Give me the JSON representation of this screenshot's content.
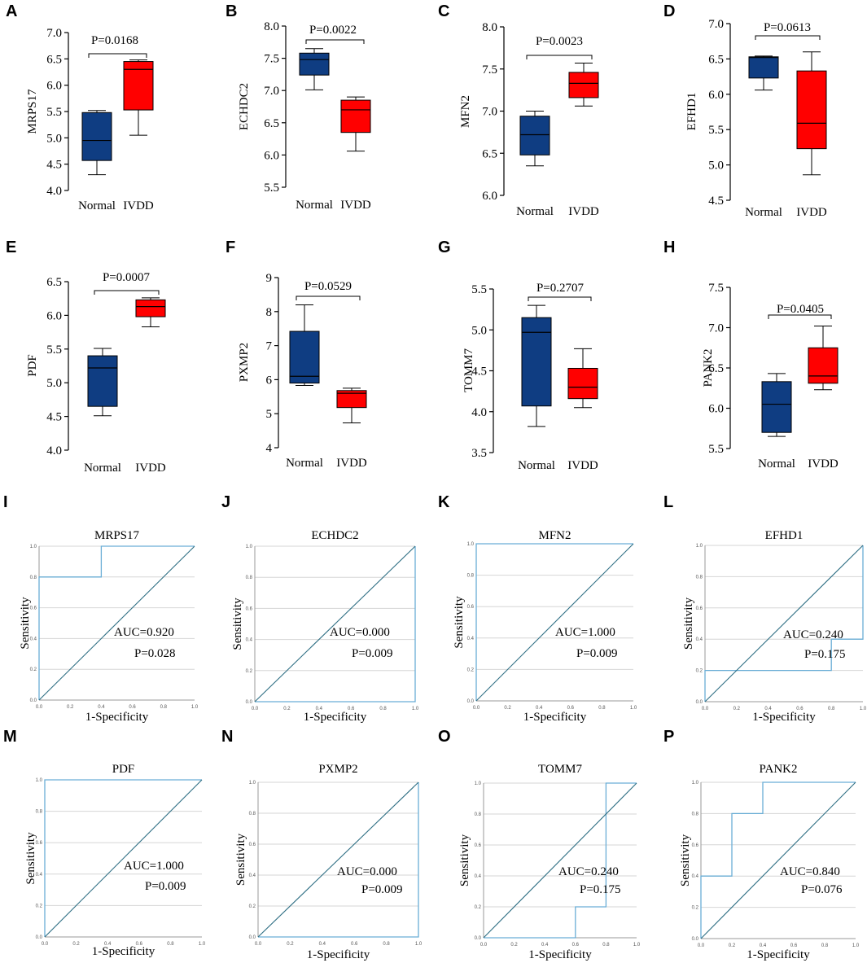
{
  "figure": {
    "chart_data": [
      {
        "panel": "A",
        "type": "box",
        "title": "",
        "ylabel": "MRPS17",
        "ylim": [
          4.0,
          7.0
        ],
        "yticks": [
          "4.0",
          "4.5",
          "5.0",
          "5.5",
          "6.0",
          "6.5",
          "7.0"
        ],
        "categories": [
          "Normal",
          "IVDD"
        ],
        "annotation": "P=0.0168",
        "series": [
          {
            "name": "Normal",
            "min": 4.3,
            "q1": 4.57,
            "median": 4.95,
            "q3": 5.48,
            "max": 5.52
          },
          {
            "name": "IVDD",
            "min": 5.05,
            "q1": 5.53,
            "median": 6.3,
            "q3": 6.45,
            "max": 6.48
          }
        ]
      },
      {
        "panel": "B",
        "type": "box",
        "title": "",
        "ylabel": "ECHDC2",
        "ylim": [
          5.5,
          8.0
        ],
        "yticks": [
          "5.5",
          "6.0",
          "6.5",
          "7.0",
          "7.5",
          "8.0"
        ],
        "categories": [
          "Normal",
          "IVDD"
        ],
        "annotation": "P=0.0022",
        "series": [
          {
            "name": "Normal",
            "min": 7.01,
            "q1": 7.24,
            "median": 7.48,
            "q3": 7.58,
            "max": 7.65
          },
          {
            "name": "IVDD",
            "min": 6.06,
            "q1": 6.35,
            "median": 6.7,
            "q3": 6.85,
            "max": 6.9
          }
        ]
      },
      {
        "panel": "C",
        "type": "box",
        "title": "",
        "ylabel": "MFN2",
        "ylim": [
          6.0,
          8.0
        ],
        "yticks": [
          "6.0",
          "6.5",
          "7.0",
          "7.5",
          "8.0"
        ],
        "categories": [
          "Normal",
          "IVDD"
        ],
        "annotation": "P=0.0023",
        "series": [
          {
            "name": "Normal",
            "min": 6.35,
            "q1": 6.48,
            "median": 6.72,
            "q3": 6.94,
            "max": 7.0
          },
          {
            "name": "IVDD",
            "min": 7.06,
            "q1": 7.16,
            "median": 7.33,
            "q3": 7.46,
            "max": 7.57
          }
        ]
      },
      {
        "panel": "D",
        "type": "box",
        "title": "",
        "ylabel": "EFHD1",
        "ylim": [
          4.5,
          7.0
        ],
        "yticks": [
          "4.5",
          "5.0",
          "5.5",
          "6.0",
          "6.5",
          "7.0"
        ],
        "categories": [
          "Normal",
          "IVDD"
        ],
        "annotation": "P=0.0613",
        "series": [
          {
            "name": "Normal",
            "min": 6.06,
            "q1": 6.23,
            "median": 6.52,
            "q3": 6.53,
            "max": 6.54
          },
          {
            "name": "IVDD",
            "min": 4.86,
            "q1": 5.23,
            "median": 5.59,
            "q3": 6.33,
            "max": 6.6
          }
        ]
      },
      {
        "panel": "E",
        "type": "box",
        "title": "",
        "ylabel": "PDF",
        "ylim": [
          4.0,
          6.5
        ],
        "yticks": [
          "4.0",
          "4.5",
          "5.0",
          "5.5",
          "6.0",
          "6.5"
        ],
        "categories": [
          "Normal",
          "IVDD"
        ],
        "annotation": "P=0.0007",
        "series": [
          {
            "name": "Normal",
            "min": 4.51,
            "q1": 4.65,
            "median": 5.22,
            "q3": 5.4,
            "max": 5.51
          },
          {
            "name": "IVDD",
            "min": 5.83,
            "q1": 5.98,
            "median": 6.13,
            "q3": 6.23,
            "max": 6.26
          }
        ]
      },
      {
        "panel": "F",
        "type": "box",
        "title": "",
        "ylabel": "PXMP2",
        "ylim": [
          4,
          9
        ],
        "yticks": [
          "4",
          "5",
          "6",
          "7",
          "8",
          "9"
        ],
        "categories": [
          "Normal",
          "IVDD"
        ],
        "annotation": "P=0.0529",
        "series": [
          {
            "name": "Normal",
            "min": 5.83,
            "q1": 5.9,
            "median": 6.1,
            "q3": 7.42,
            "max": 8.2
          },
          {
            "name": "IVDD",
            "min": 4.73,
            "q1": 5.18,
            "median": 5.6,
            "q3": 5.68,
            "max": 5.75
          }
        ]
      },
      {
        "panel": "G",
        "type": "box",
        "title": "",
        "ylabel": "TOMM7",
        "ylim": [
          3.5,
          5.5
        ],
        "yticks": [
          "3.5",
          "4.0",
          "4.5",
          "5.0",
          "5.5"
        ],
        "categories": [
          "Normal",
          "IVDD"
        ],
        "annotation": "P=0.2707",
        "series": [
          {
            "name": "Normal",
            "min": 3.82,
            "q1": 4.07,
            "median": 4.97,
            "q3": 5.15,
            "max": 5.3
          },
          {
            "name": "IVDD",
            "min": 4.05,
            "q1": 4.16,
            "median": 4.3,
            "q3": 4.53,
            "max": 4.77
          }
        ]
      },
      {
        "panel": "H",
        "type": "box",
        "title": "",
        "ylabel": "PANK2",
        "ylim": [
          5.5,
          7.5
        ],
        "yticks": [
          "5.5",
          "6.0",
          "6.5",
          "7.0",
          "7.5"
        ],
        "categories": [
          "Normal",
          "IVDD"
        ],
        "annotation": "P=0.0405",
        "series": [
          {
            "name": "Normal",
            "min": 5.65,
            "q1": 5.7,
            "median": 6.05,
            "q3": 6.33,
            "max": 6.43
          },
          {
            "name": "IVDD",
            "min": 6.23,
            "q1": 6.31,
            "median": 6.4,
            "q3": 6.75,
            "max": 7.02
          }
        ]
      },
      {
        "panel": "I",
        "type": "line",
        "title": "MRPS17",
        "xlabel": "1-Specificity",
        "ylabel": "Sensitivity",
        "xlim": [
          0,
          1
        ],
        "ylim": [
          0,
          1
        ],
        "ticks": [
          "0.0",
          "0.2",
          "0.4",
          "0.6",
          "0.8",
          "1.0"
        ],
        "auc_text": "AUC=0.920",
        "p_text": "P=0.028",
        "series": [
          {
            "name": "ROC",
            "x": [
              0,
              0,
              0.4,
              0.4,
              1
            ],
            "y": [
              0,
              0.8,
              0.8,
              1,
              1
            ]
          },
          {
            "name": "Reference",
            "x": [
              0,
              1
            ],
            "y": [
              0,
              1
            ]
          }
        ]
      },
      {
        "panel": "J",
        "type": "line",
        "title": "ECHDC2",
        "xlabel": "1-Specificity",
        "ylabel": "Sensitivity",
        "xlim": [
          0,
          1
        ],
        "ylim": [
          0,
          1
        ],
        "ticks": [
          "0.0",
          "0.2",
          "0.4",
          "0.6",
          "0.8",
          "1.0"
        ],
        "auc_text": "AUC=0.000",
        "p_text": "P=0.009",
        "series": [
          {
            "name": "ROC",
            "x": [
              0,
              1,
              1
            ],
            "y": [
              0,
              0,
              1
            ]
          },
          {
            "name": "Reference",
            "x": [
              0,
              1
            ],
            "y": [
              0,
              1
            ]
          }
        ]
      },
      {
        "panel": "K",
        "type": "line",
        "title": "MFN2",
        "xlabel": "1-Specificity",
        "ylabel": "Sensitivity",
        "xlim": [
          0,
          1
        ],
        "ylim": [
          0,
          1
        ],
        "ticks": [
          "0.0",
          "0.2",
          "0.4",
          "0.6",
          "0.8",
          "1.0"
        ],
        "auc_text": "AUC=1.000",
        "p_text": "P=0.009",
        "series": [
          {
            "name": "ROC",
            "x": [
              0,
              0,
              1
            ],
            "y": [
              0,
              1,
              1
            ]
          },
          {
            "name": "Reference",
            "x": [
              0,
              1
            ],
            "y": [
              0,
              1
            ]
          }
        ]
      },
      {
        "panel": "L",
        "type": "line",
        "title": "EFHD1",
        "xlabel": "1-Specificity",
        "ylabel": "Sensitivity",
        "xlim": [
          0,
          1
        ],
        "ylim": [
          0,
          1
        ],
        "ticks": [
          "0.0",
          "0.2",
          "0.4",
          "0.6",
          "0.8",
          "1.0"
        ],
        "auc_text": "AUC=0.240",
        "p_text": "P=0.175",
        "series": [
          {
            "name": "ROC",
            "x": [
              0,
              0,
              0.8,
              0.8,
              1,
              1
            ],
            "y": [
              0,
              0.2,
              0.2,
              0.4,
              0.4,
              1
            ]
          },
          {
            "name": "Reference",
            "x": [
              0,
              1
            ],
            "y": [
              0,
              1
            ]
          }
        ]
      },
      {
        "panel": "M",
        "type": "line",
        "title": "PDF",
        "xlabel": "1-Specificity",
        "ylabel": "Sensitivity",
        "xlim": [
          0,
          1
        ],
        "ylim": [
          0,
          1
        ],
        "ticks": [
          "0.0",
          "0.2",
          "0.4",
          "0.6",
          "0.8",
          "1.0"
        ],
        "auc_text": "AUC=1.000",
        "p_text": "P=0.009",
        "series": [
          {
            "name": "ROC",
            "x": [
              0,
              0,
              1
            ],
            "y": [
              0,
              1,
              1
            ]
          },
          {
            "name": "Reference",
            "x": [
              0,
              1
            ],
            "y": [
              0,
              1
            ]
          }
        ]
      },
      {
        "panel": "N",
        "type": "line",
        "title": "PXMP2",
        "xlabel": "1-Specificity",
        "ylabel": "Sensitivity",
        "xlim": [
          0,
          1
        ],
        "ylim": [
          0,
          1
        ],
        "ticks": [
          "0.0",
          "0.2",
          "0.4",
          "0.6",
          "0.8",
          "1.0"
        ],
        "auc_text": "AUC=0.000",
        "p_text": "P=0.009",
        "series": [
          {
            "name": "ROC",
            "x": [
              0,
              1,
              1
            ],
            "y": [
              0,
              0,
              1
            ]
          },
          {
            "name": "Reference",
            "x": [
              0,
              1
            ],
            "y": [
              0,
              1
            ]
          }
        ]
      },
      {
        "panel": "O",
        "type": "line",
        "title": "TOMM7",
        "xlabel": "1-Specificity",
        "ylabel": "Sensitivity",
        "xlim": [
          0,
          1
        ],
        "ylim": [
          0,
          1
        ],
        "ticks": [
          "0.0",
          "0.2",
          "0.4",
          "0.6",
          "0.8",
          "1.0"
        ],
        "auc_text": "AUC=0.240",
        "p_text": "P=0.175",
        "series": [
          {
            "name": "ROC",
            "x": [
              0,
              0.6,
              0.6,
              0.8,
              0.8,
              1
            ],
            "y": [
              0,
              0,
              0.2,
              0.2,
              1,
              1
            ]
          },
          {
            "name": "Reference",
            "x": [
              0,
              1
            ],
            "y": [
              0,
              1
            ]
          }
        ]
      },
      {
        "panel": "P",
        "type": "line",
        "title": "PANK2",
        "xlabel": "1-Specificity",
        "ylabel": "Sensitivity",
        "xlim": [
          0,
          1
        ],
        "ylim": [
          0,
          1
        ],
        "ticks": [
          "0.0",
          "0.2",
          "0.4",
          "0.6",
          "0.8",
          "1.0"
        ],
        "auc_text": "AUC=0.840",
        "p_text": "P=0.076",
        "series": [
          {
            "name": "ROC",
            "x": [
              0,
              0,
              0.2,
              0.2,
              0.4,
              0.4,
              1
            ],
            "y": [
              0,
              0.4,
              0.4,
              0.8,
              0.8,
              1,
              1
            ]
          },
          {
            "name": "Reference",
            "x": [
              0,
              1
            ],
            "y": [
              0,
              1
            ]
          }
        ]
      }
    ]
  },
  "colors": {
    "normal_box": "#0f3d82",
    "ivdd_box": "#ff0000",
    "roc_curve": "#6aaed6",
    "reference_line": "#2f6f84",
    "grid": "#d6d6d6"
  }
}
